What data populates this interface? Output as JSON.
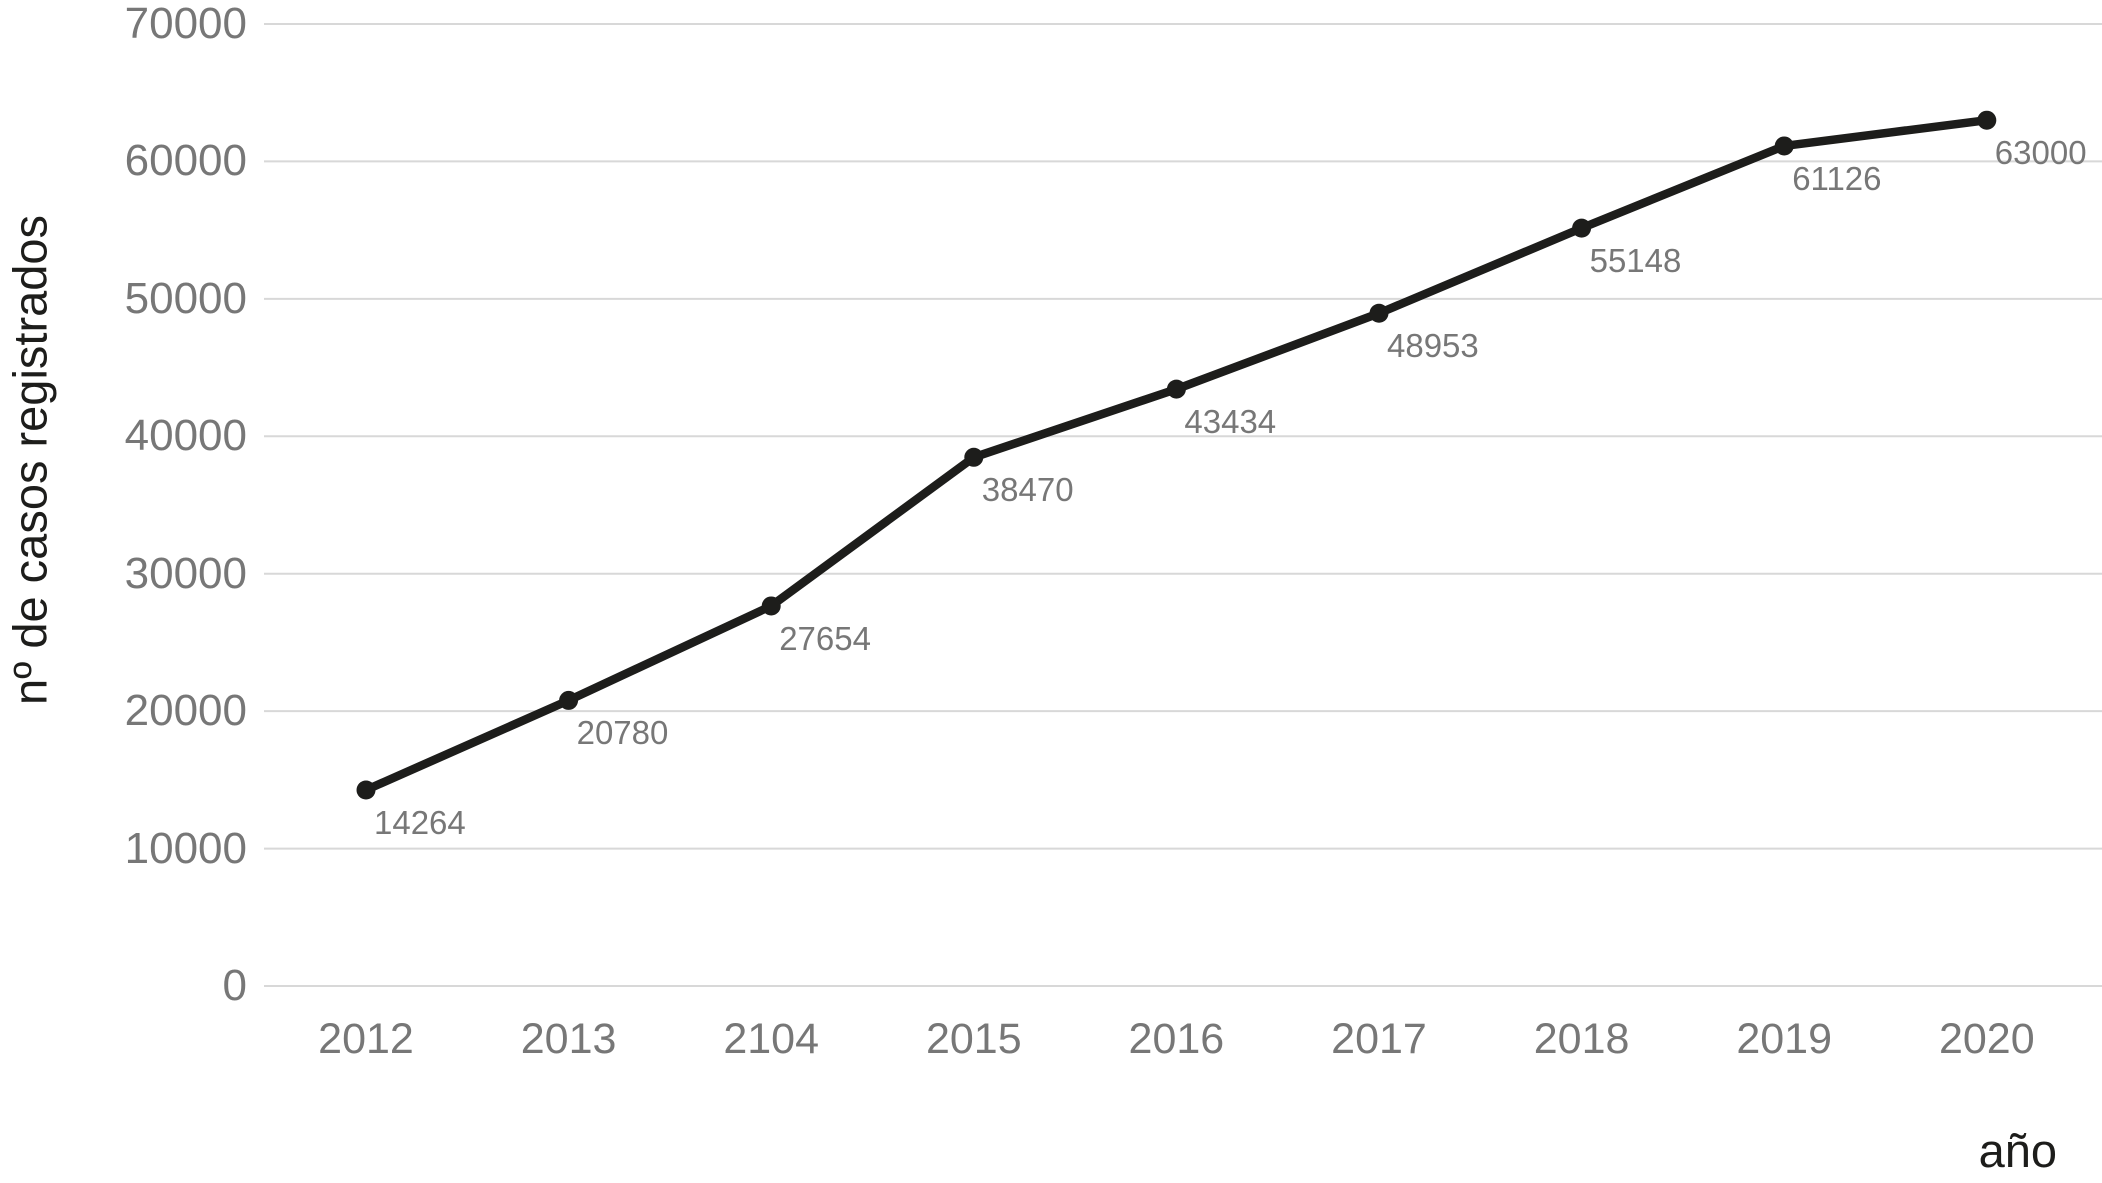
{
  "chart_data": {
    "type": "line",
    "x": [
      "2012",
      "2013",
      "2104",
      "2015",
      "2016",
      "2017",
      "2018",
      "2019",
      "2020"
    ],
    "values": [
      14264,
      20780,
      27654,
      38470,
      43434,
      48953,
      55148,
      61126,
      63000
    ],
    "point_labels": [
      "14264",
      "20780",
      "27654",
      "38470",
      "43434",
      "48953",
      "55148",
      "61126",
      "63000"
    ],
    "title": "",
    "xlabel": "año",
    "ylabel": "nº de casos registrados",
    "ylim": [
      0,
      70000
    ],
    "yticks": [
      0,
      10000,
      20000,
      30000,
      40000,
      50000,
      60000,
      70000
    ],
    "grid": "horizontal-only",
    "legend": "none",
    "marker": "filled-circle"
  },
  "colors": {
    "background": "#ffffff",
    "line": "#1d1d1b",
    "point": "#1d1d1b",
    "gridline": "#d8d8d8",
    "tick_label": "#777777",
    "point_label": "#777777",
    "axis_title": "#1d1d1b"
  }
}
